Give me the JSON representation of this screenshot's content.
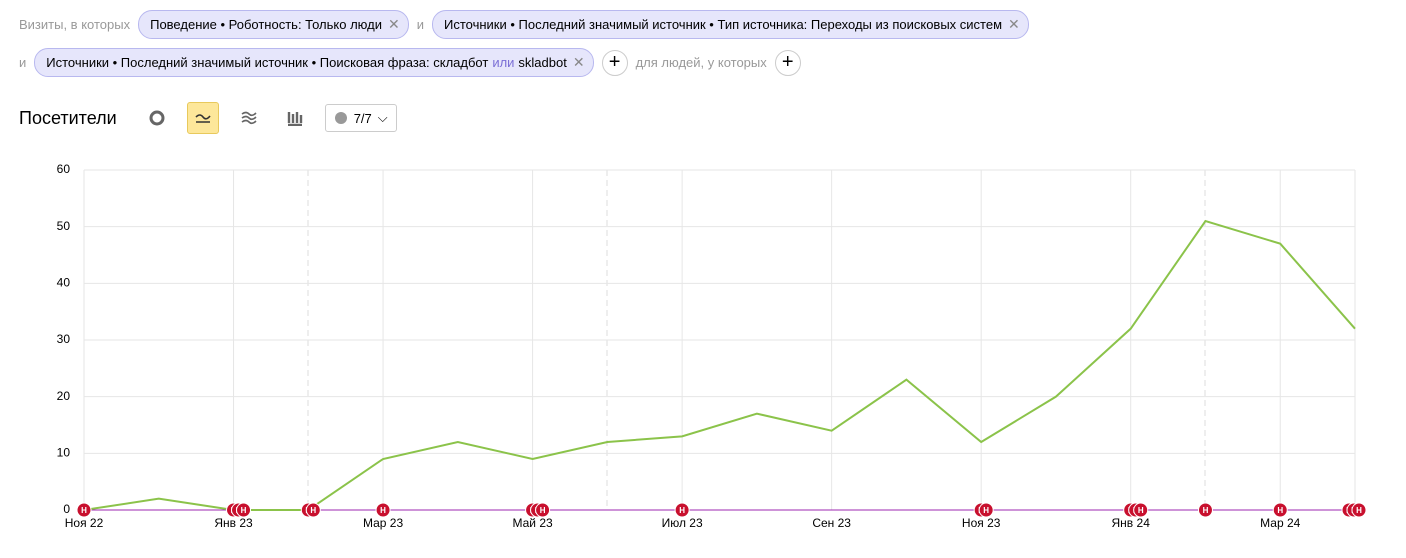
{
  "filters": {
    "lead": "Визиты, в которых",
    "joiner_1": "и",
    "chip_1": "Поведение • Роботность: Только люди",
    "chip_2": "Источники • Последний значимый источник • Тип источника: Переходы из поисковых систем",
    "joiner_2": "и",
    "chip_3_a": "Источники • Последний значимый источник • Поисковая фраза: складбот",
    "chip_3_or": "или",
    "chip_3_b": "skladbot",
    "people": "для людей, у которых"
  },
  "toolbar": {
    "title": "Посетители",
    "counter": "7/7"
  },
  "chart_data": {
    "type": "line",
    "categories": [
      "Ноя 22",
      null,
      "Янв 23",
      null,
      "Мар 23",
      null,
      "Май 23",
      null,
      "Июл 23",
      null,
      "Сен 23",
      null,
      "Ноя 23",
      null,
      "Янв 24",
      null,
      "Мар 24",
      null
    ],
    "series": [
      {
        "name": "Посетители",
        "color": "#8bc34a",
        "values": [
          0,
          2,
          0,
          0,
          9,
          12,
          9,
          12,
          13,
          17,
          14,
          23,
          12,
          20,
          32,
          51,
          47,
          32
        ]
      }
    ],
    "ylim": [
      0,
      60
    ],
    "yticks": [
      0,
      10,
      20,
      30,
      40,
      50,
      60
    ],
    "grid": true,
    "annotations": {
      "label": "Н",
      "at": [
        0,
        2,
        2,
        2,
        3,
        3,
        4,
        6,
        6,
        6,
        8,
        12,
        12,
        14,
        14,
        14,
        15,
        16,
        17,
        17,
        17
      ]
    }
  }
}
